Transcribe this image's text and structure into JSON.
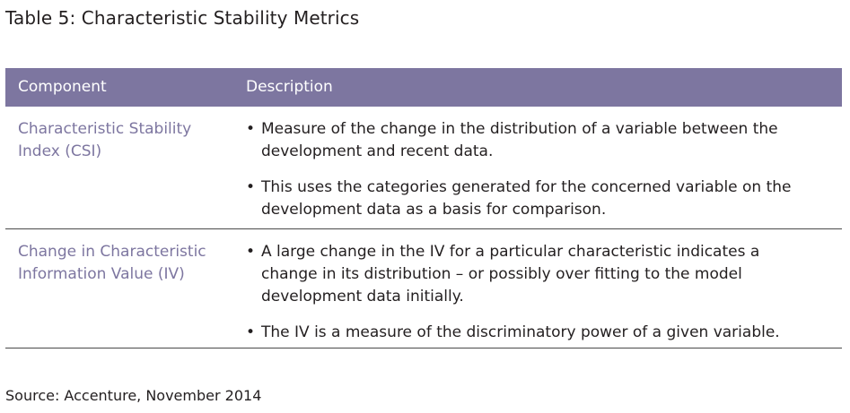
{
  "title": "Table 5: Characteristic Stability Metrics",
  "table": {
    "headers": {
      "component": "Component",
      "description": "Description"
    },
    "rows": [
      {
        "component": "Characteristic Stability Index (CSI)",
        "bullets": [
          "Measure of the change in the distribution of a variable between the development and recent data.",
          "This uses the categories generated for the concerned variable on the development data as a basis for comparison."
        ]
      },
      {
        "component": "Change in Characteristic Information Value (IV)",
        "bullets": [
          "A large change in the IV for a particular characteristic indicates a change in its distribution – or possibly over fitting to the model development data initially.",
          "The IV is a measure of the discriminatory power of a given variable."
        ]
      }
    ],
    "bullet_glyph": "•"
  },
  "source": "Source: Accenture, November 2014",
  "colors": {
    "header_bg": "#7d76a0",
    "component_text": "#7d76a0",
    "body_text": "#231f20",
    "rule": "#4a4a4a"
  }
}
